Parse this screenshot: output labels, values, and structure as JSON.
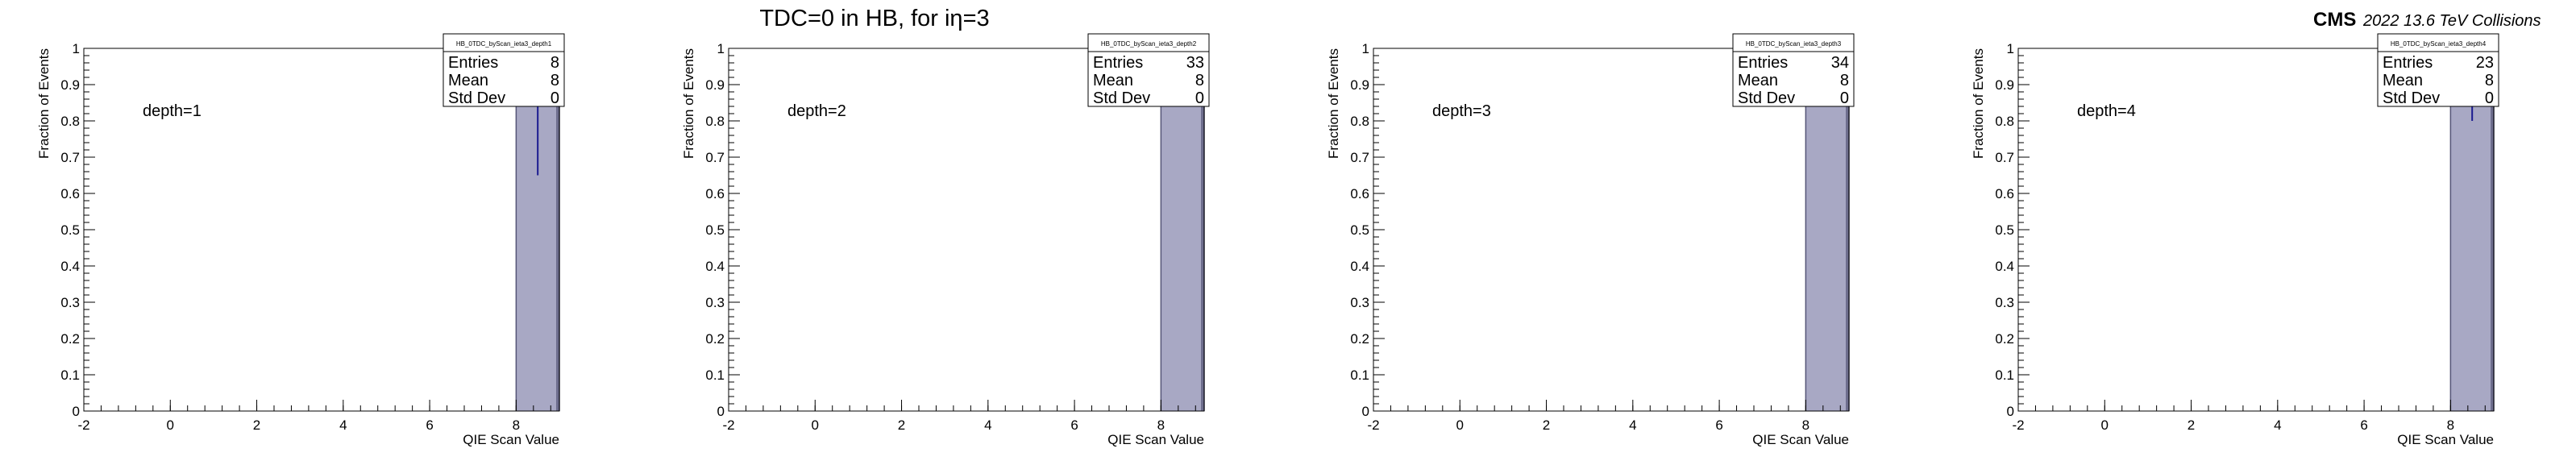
{
  "header": {
    "title": "TDC=0 in HB, for iη=3",
    "cms_label": "CMS",
    "cms_sublabel": "2022 13.6 TeV Collisions"
  },
  "chart_data": [
    {
      "type": "bar",
      "title": "",
      "stats_box": {
        "name": "HB_0TDC_byScan_ieta3_depth1",
        "entries": "8",
        "mean": "8",
        "std_dev": "0"
      },
      "annotation": "depth=1",
      "xlabel": "QIE Scan Value",
      "ylabel": "Fraction of Events",
      "xlim": [
        -2,
        9
      ],
      "ylim": [
        0,
        1
      ],
      "x_ticks": [
        -2,
        0,
        2,
        4,
        6,
        8
      ],
      "y_ticks": [
        0,
        0.1,
        0.2,
        0.3,
        0.4,
        0.5,
        0.6,
        0.7,
        0.8,
        0.9,
        1
      ],
      "bins": [
        {
          "x_low": 8,
          "x_high": 9,
          "value": 1
        }
      ],
      "error_bar": {
        "x": 8.5,
        "low": 0.65,
        "high": 1
      },
      "grid": false,
      "legend": "top-right"
    },
    {
      "type": "bar",
      "title": "",
      "stats_box": {
        "name": "HB_0TDC_byScan_ieta3_depth2",
        "entries": "33",
        "mean": "8",
        "std_dev": "0"
      },
      "annotation": "depth=2",
      "xlabel": "QIE Scan Value",
      "ylabel": "Fraction of Events",
      "xlim": [
        -2,
        9
      ],
      "ylim": [
        0,
        1
      ],
      "x_ticks": [
        -2,
        0,
        2,
        4,
        6,
        8
      ],
      "y_ticks": [
        0,
        0.1,
        0.2,
        0.3,
        0.4,
        0.5,
        0.6,
        0.7,
        0.8,
        0.9,
        1
      ],
      "bins": [
        {
          "x_low": 8,
          "x_high": 9,
          "value": 1
        }
      ],
      "error_bar": {
        "x": 8.5,
        "low": 0.84,
        "high": 1
      },
      "grid": false,
      "legend": "top-right"
    },
    {
      "type": "bar",
      "title": "",
      "stats_box": {
        "name": "HB_0TDC_byScan_ieta3_depth3",
        "entries": "34",
        "mean": "8",
        "std_dev": "0"
      },
      "annotation": "depth=3",
      "xlabel": "QIE Scan Value",
      "ylabel": "Fraction of Events",
      "xlim": [
        -2,
        9
      ],
      "ylim": [
        0,
        1
      ],
      "x_ticks": [
        -2,
        0,
        2,
        4,
        6,
        8
      ],
      "y_ticks": [
        0,
        0.1,
        0.2,
        0.3,
        0.4,
        0.5,
        0.6,
        0.7,
        0.8,
        0.9,
        1
      ],
      "bins": [
        {
          "x_low": 8,
          "x_high": 9,
          "value": 1
        }
      ],
      "error_bar": {
        "x": 8.5,
        "low": 0.85,
        "high": 1
      },
      "grid": false,
      "legend": "top-right"
    },
    {
      "type": "bar",
      "title": "",
      "stats_box": {
        "name": "HB_0TDC_byScan_ieta3_depth4",
        "entries": "23",
        "mean": "8",
        "std_dev": "0"
      },
      "annotation": "depth=4",
      "xlabel": "QIE Scan Value",
      "ylabel": "Fraction of Events",
      "xlim": [
        -2,
        9
      ],
      "ylim": [
        0,
        1
      ],
      "x_ticks": [
        -2,
        0,
        2,
        4,
        6,
        8
      ],
      "y_ticks": [
        0,
        0.1,
        0.2,
        0.3,
        0.4,
        0.5,
        0.6,
        0.7,
        0.8,
        0.9,
        1
      ],
      "bins": [
        {
          "x_low": 8,
          "x_high": 9,
          "value": 1
        }
      ],
      "error_bar": {
        "x": 8.5,
        "low": 0.8,
        "high": 1
      },
      "grid": false,
      "legend": "top-right"
    }
  ],
  "labels": {
    "entries": "Entries",
    "mean": "Mean",
    "std_dev": "Std Dev"
  },
  "colors": {
    "fill": "#a8a8c4",
    "line": "#1a1a90",
    "edge": "#555577",
    "axis": "#000000"
  }
}
